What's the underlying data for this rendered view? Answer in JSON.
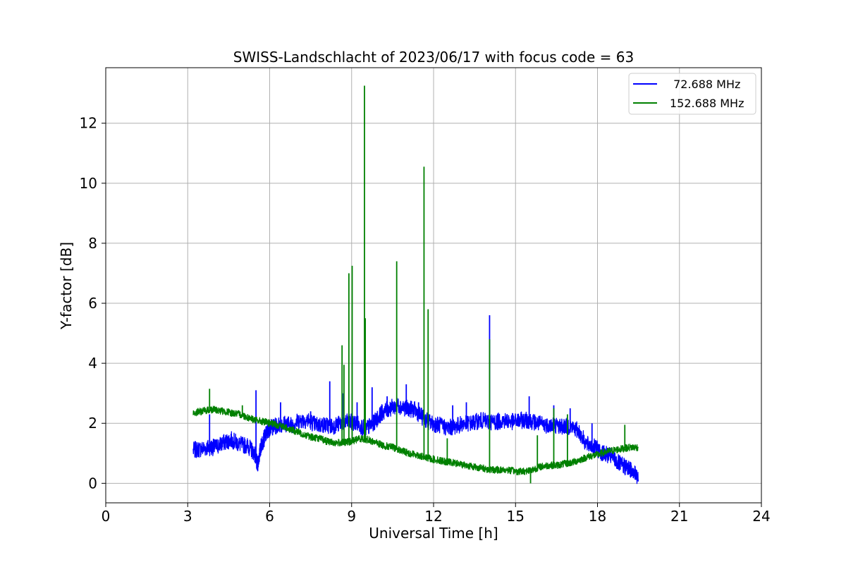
{
  "chart_data": {
    "type": "line",
    "title": "SWISS-Landschlacht of 2023/06/17 with focus code = 63",
    "xlabel": "Universal Time [h]",
    "ylabel": "Y-factor [dB]",
    "xlim": [
      0,
      24
    ],
    "ylim": [
      -0.65,
      13.85
    ],
    "xticks": [
      0,
      3,
      6,
      9,
      12,
      15,
      18,
      21,
      24
    ],
    "yticks": [
      0,
      2,
      4,
      6,
      8,
      10,
      12
    ],
    "grid": true,
    "legend_position": "top-right",
    "series": [
      {
        "name": " 72.688 MHz",
        "color": "#0000ff",
        "x": [
          3.2,
          3.5,
          3.8,
          4.0,
          4.3,
          4.6,
          4.9,
          5.2,
          5.45,
          5.55,
          5.7,
          5.85,
          6.0,
          6.2,
          6.5,
          6.8,
          7.1,
          7.4,
          7.7,
          8.0,
          8.3,
          8.6,
          8.9,
          9.2,
          9.5,
          9.8,
          10.1,
          10.4,
          10.7,
          11.0,
          11.3,
          11.6,
          11.9,
          12.2,
          12.5,
          12.8,
          13.1,
          13.4,
          13.7,
          14.0,
          14.3,
          14.6,
          14.9,
          15.2,
          15.5,
          15.8,
          16.1,
          16.4,
          16.7,
          17.0,
          17.3,
          17.6,
          17.9,
          18.2,
          18.5,
          18.8,
          19.1,
          19.3,
          19.5
        ],
        "y": [
          1.1,
          1.15,
          1.2,
          1.2,
          1.35,
          1.45,
          1.3,
          1.25,
          1.0,
          0.6,
          1.3,
          1.6,
          1.85,
          1.9,
          2.0,
          1.95,
          2.1,
          2.1,
          1.95,
          1.95,
          1.9,
          2.0,
          2.05,
          2.0,
          1.8,
          2.0,
          2.35,
          2.5,
          2.6,
          2.5,
          2.45,
          2.2,
          2.0,
          1.95,
          1.85,
          1.9,
          2.0,
          2.0,
          2.1,
          2.05,
          2.05,
          2.1,
          2.05,
          2.1,
          2.1,
          2.0,
          1.95,
          1.95,
          1.9,
          1.9,
          1.75,
          1.3,
          1.2,
          1.0,
          0.9,
          0.65,
          0.5,
          0.45,
          0.1
        ],
        "spikes": [
          [
            3.8,
            2.3
          ],
          [
            5.5,
            3.1
          ],
          [
            6.4,
            2.7
          ],
          [
            7.5,
            2.4
          ],
          [
            8.2,
            3.4
          ],
          [
            8.7,
            3.0
          ],
          [
            9.2,
            2.7
          ],
          [
            9.75,
            3.2
          ],
          [
            10.3,
            2.9
          ],
          [
            11.0,
            3.3
          ],
          [
            11.45,
            2.7
          ],
          [
            12.7,
            2.6
          ],
          [
            13.2,
            2.7
          ],
          [
            14.05,
            5.6
          ],
          [
            15.5,
            2.9
          ],
          [
            16.4,
            2.6
          ],
          [
            17.0,
            2.5
          ],
          [
            17.8,
            2.0
          ]
        ]
      },
      {
        "name": "152.688 MHz",
        "color": "#008000",
        "x": [
          3.2,
          3.5,
          3.8,
          4.0,
          4.3,
          4.6,
          4.9,
          5.2,
          5.5,
          5.8,
          6.0,
          6.3,
          6.6,
          6.9,
          7.2,
          7.5,
          7.8,
          8.1,
          8.4,
          8.7,
          9.0,
          9.3,
          9.6,
          9.9,
          10.2,
          10.5,
          10.8,
          11.1,
          11.4,
          11.7,
          12.0,
          12.3,
          12.6,
          12.9,
          13.2,
          13.5,
          13.8,
          14.1,
          14.4,
          14.7,
          15.0,
          15.3,
          15.6,
          15.9,
          16.2,
          16.5,
          16.8,
          17.1,
          17.4,
          17.7,
          18.0,
          18.3,
          18.6,
          18.9,
          19.2,
          19.5
        ],
        "y": [
          2.35,
          2.4,
          2.45,
          2.45,
          2.4,
          2.35,
          2.3,
          2.2,
          2.1,
          2.05,
          2.0,
          1.95,
          1.85,
          1.75,
          1.65,
          1.55,
          1.5,
          1.4,
          1.35,
          1.35,
          1.4,
          1.5,
          1.45,
          1.35,
          1.25,
          1.2,
          1.1,
          1.0,
          0.95,
          0.85,
          0.8,
          0.75,
          0.7,
          0.65,
          0.6,
          0.55,
          0.5,
          0.45,
          0.45,
          0.45,
          0.4,
          0.4,
          0.45,
          0.55,
          0.6,
          0.6,
          0.65,
          0.7,
          0.8,
          0.9,
          0.95,
          1.05,
          1.1,
          1.15,
          1.2,
          1.2
        ],
        "spikes": [
          [
            3.8,
            3.15
          ],
          [
            5.0,
            2.6
          ],
          [
            8.65,
            4.6
          ],
          [
            8.72,
            3.95
          ],
          [
            8.9,
            7.0
          ],
          [
            9.02,
            7.25
          ],
          [
            9.47,
            13.25
          ],
          [
            9.5,
            5.5
          ],
          [
            10.65,
            7.4
          ],
          [
            11.65,
            10.55
          ],
          [
            11.8,
            5.8
          ],
          [
            12.5,
            1.5
          ],
          [
            14.05,
            4.8
          ],
          [
            15.8,
            1.6
          ],
          [
            16.4,
            2.5
          ],
          [
            16.9,
            2.3
          ],
          [
            19.0,
            1.95
          ],
          [
            15.55,
            0.0
          ]
        ]
      }
    ]
  }
}
